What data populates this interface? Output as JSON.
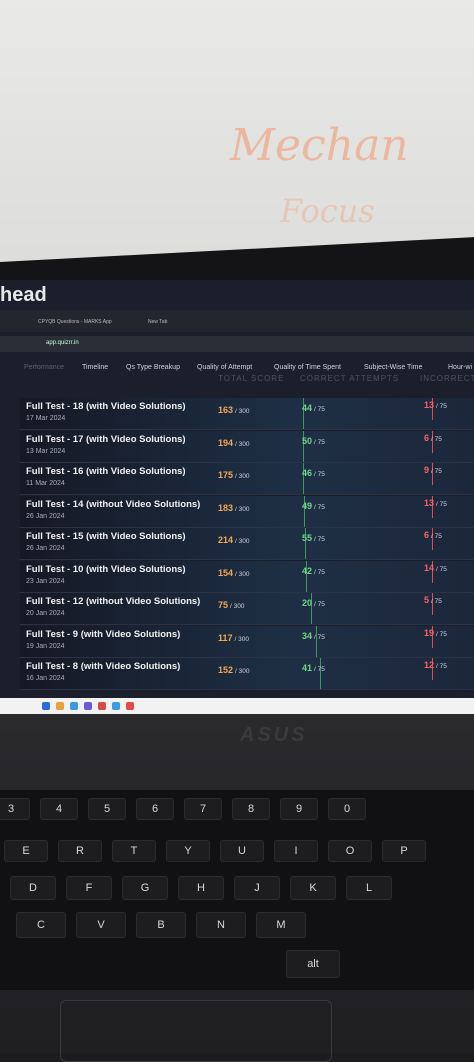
{
  "whiteboard": {
    "texts": [
      "Mechan",
      "Focus"
    ]
  },
  "browser": {
    "tabs": [
      "CPYQB Questions - MARKS App",
      "New Tab"
    ],
    "url": "app.quizrr.in"
  },
  "app": {
    "brand": "head",
    "nav": [
      "Performance",
      "Timeline",
      "Qs Type Breakup",
      "Quality of Attempt",
      "Quality of Time Spent",
      "Subject-Wise Time",
      "Hour-wi"
    ],
    "columns": [
      "TOTAL SCORE",
      "CORRECT ATTEMPTS",
      "INCORRECT"
    ],
    "rows": [
      {
        "title": "Full Test - 18 (with Video Solutions)",
        "date": "17 Mar 2024",
        "score": 163,
        "score_total": "/ 300",
        "correct": 44,
        "correct_total": "/ 75",
        "incorrect": 13,
        "incorrect_total": "/ 75"
      },
      {
        "title": "Full Test - 17 (with Video Solutions)",
        "date": "13 Mar 2024",
        "score": 194,
        "score_total": "/ 300",
        "correct": 50,
        "correct_total": "/ 75",
        "incorrect": 6,
        "incorrect_total": "/ 75"
      },
      {
        "title": "Full Test - 16 (with Video Solutions)",
        "date": "11 Mar 2024",
        "score": 175,
        "score_total": "/ 300",
        "correct": 46,
        "correct_total": "/ 75",
        "incorrect": 9,
        "incorrect_total": "/ 75"
      },
      {
        "title": "Full Test - 14 (without Video Solutions)",
        "date": "26 Jan 2024",
        "score": 183,
        "score_total": "/ 300",
        "correct": 49,
        "correct_total": "/ 75",
        "incorrect": 13,
        "incorrect_total": "/ 75"
      },
      {
        "title": "Full Test - 15 (with Video Solutions)",
        "date": "26 Jan 2024",
        "score": 214,
        "score_total": "/ 300",
        "correct": 55,
        "correct_total": "/ 75",
        "incorrect": 6,
        "incorrect_total": "/ 75"
      },
      {
        "title": "Full Test - 10 (with Video Solutions)",
        "date": "23 Jan 2024",
        "score": 154,
        "score_total": "/ 300",
        "correct": 42,
        "correct_total": "/ 75",
        "incorrect": 14,
        "incorrect_total": "/ 75"
      },
      {
        "title": "Full Test - 12 (without Video Solutions)",
        "date": "20 Jan 2024",
        "score": 75,
        "score_total": "/ 300",
        "correct": 20,
        "correct_total": "/ 75",
        "incorrect": 5,
        "incorrect_total": "/ 75"
      },
      {
        "title": "Full Test - 9 (with Video Solutions)",
        "date": "19 Jan 2024",
        "score": 117,
        "score_total": "/ 300",
        "correct": 34,
        "correct_total": "/ 75",
        "incorrect": 19,
        "incorrect_total": "/ 75"
      },
      {
        "title": "Full Test - 8 (with Video Solutions)",
        "date": "16 Jan 2024",
        "score": 152,
        "score_total": "/ 300",
        "correct": 41,
        "correct_total": "/ 75",
        "incorrect": 12,
        "incorrect_total": "/ 75"
      }
    ]
  },
  "laptop": {
    "logo": "ASUS",
    "keys": [
      [
        "3",
        "4",
        "5",
        "6",
        "7",
        "8",
        "9",
        "0"
      ],
      [
        "E",
        "R",
        "T",
        "Y",
        "U",
        "I",
        "O",
        "P"
      ],
      [
        "D",
        "F",
        "G",
        "H",
        "J",
        "K",
        "L"
      ],
      [
        "C",
        "V",
        "B",
        "N",
        "M"
      ],
      [
        "alt"
      ]
    ]
  }
}
